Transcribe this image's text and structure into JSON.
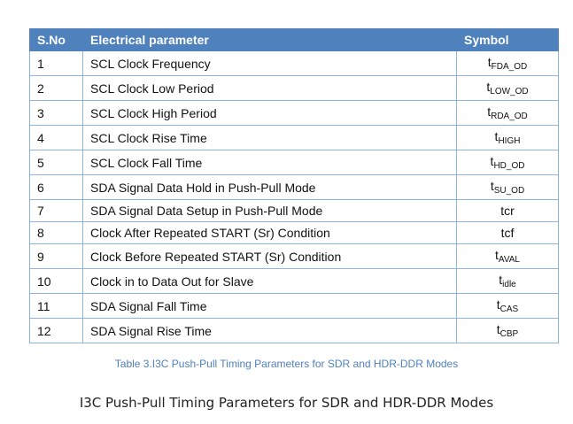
{
  "table": {
    "headers": [
      "S.No",
      "Electrical parameter",
      "Symbol"
    ],
    "rows": [
      {
        "no": "1",
        "param": "SCL Clock Frequency",
        "sym": "t",
        "sub": "FDA_OD"
      },
      {
        "no": "2",
        "param": "SCL Clock Low Period",
        "sym": "t",
        "sub": "LOW_OD"
      },
      {
        "no": "3",
        "param": "SCL Clock High Period",
        "sym": "t",
        "sub": "RDA_OD"
      },
      {
        "no": "4",
        "param": "SCL Clock Rise Time",
        "sym": "t",
        "sub": "HIGH"
      },
      {
        "no": "5",
        "param": "SCL Clock Fall Time",
        "sym": "t",
        "sub": "HD_OD"
      },
      {
        "no": "6",
        "param": "SDA Signal Data Hold in Push-Pull Mode",
        "sym": "t",
        "sub": "SU_OD"
      },
      {
        "no": "7",
        "param": "SDA Signal Data Setup in Push-Pull Mode",
        "sym": "tcr",
        "sub": ""
      },
      {
        "no": "8",
        "param": "Clock After Repeated START (Sr) Condition",
        "sym": "tcf",
        "sub": ""
      },
      {
        "no": "9",
        "param": "Clock Before Repeated START (Sr) Condition",
        "sym": "t",
        "sub": "AVAL"
      },
      {
        "no": "10",
        "param": "Clock in to Data Out for Slave",
        "sym": "t",
        "sub": "idle"
      },
      {
        "no": "11",
        "param": "SDA Signal Fall Time",
        "sym": "t",
        "sub": "CAS"
      },
      {
        "no": "12",
        "param": "SDA Signal Rise Time",
        "sym": "t",
        "sub": "CBP"
      }
    ]
  },
  "table_caption": "Table 3.I3C Push-Pull Timing Parameters for SDR and HDR-DDR Modes",
  "figure_caption": "I3C Push-Pull Timing Parameters for SDR and HDR-DDR Modes",
  "colors": {
    "header_bg": "#4f81bd",
    "border": "#8db3e2",
    "caption": "#4f81bd"
  }
}
